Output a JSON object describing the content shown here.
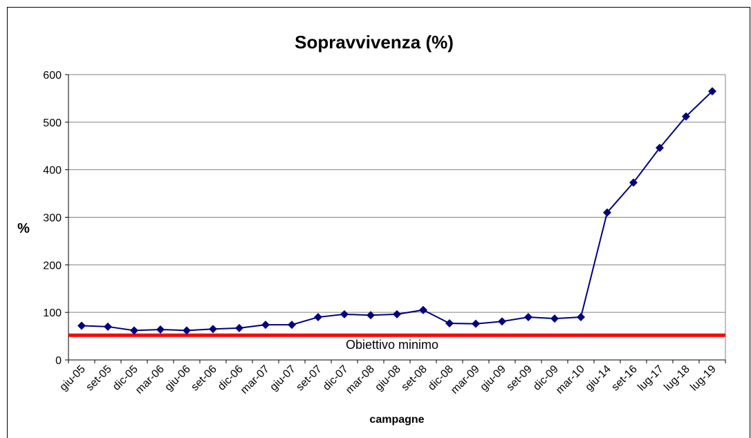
{
  "chart_data": {
    "type": "line",
    "title": "Sopravvivenza (%)",
    "xlabel": "campagne",
    "ylabel": "%",
    "categories": [
      "giu-05",
      "set-05",
      "dic-05",
      "mar-06",
      "giu-06",
      "set-06",
      "dic-06",
      "mar-07",
      "giu-07",
      "set-07",
      "dic-07",
      "mar-08",
      "giu-08",
      "set-08",
      "dic-08",
      "mar-09",
      "giu-09",
      "set-09",
      "dic-09",
      "mar-10",
      "giu-14",
      "set-16",
      "lug-17",
      "lug-18",
      "lug-19"
    ],
    "series": [
      {
        "name": "Sopravvivenza",
        "color": "#000080",
        "values": [
          72,
          70,
          62,
          64,
          62,
          65,
          67,
          74,
          74,
          90,
          96,
          94,
          96,
          105,
          77,
          76,
          81,
          90,
          87,
          90,
          310,
          373,
          446,
          512,
          565
        ]
      }
    ],
    "threshold": {
      "value": 52,
      "label": "Obiettivo minimo",
      "color": "#ff0000"
    },
    "ylim": [
      0,
      600
    ],
    "yticks": [
      0,
      100,
      200,
      300,
      400,
      500,
      600
    ],
    "grid": true,
    "legend": false
  }
}
